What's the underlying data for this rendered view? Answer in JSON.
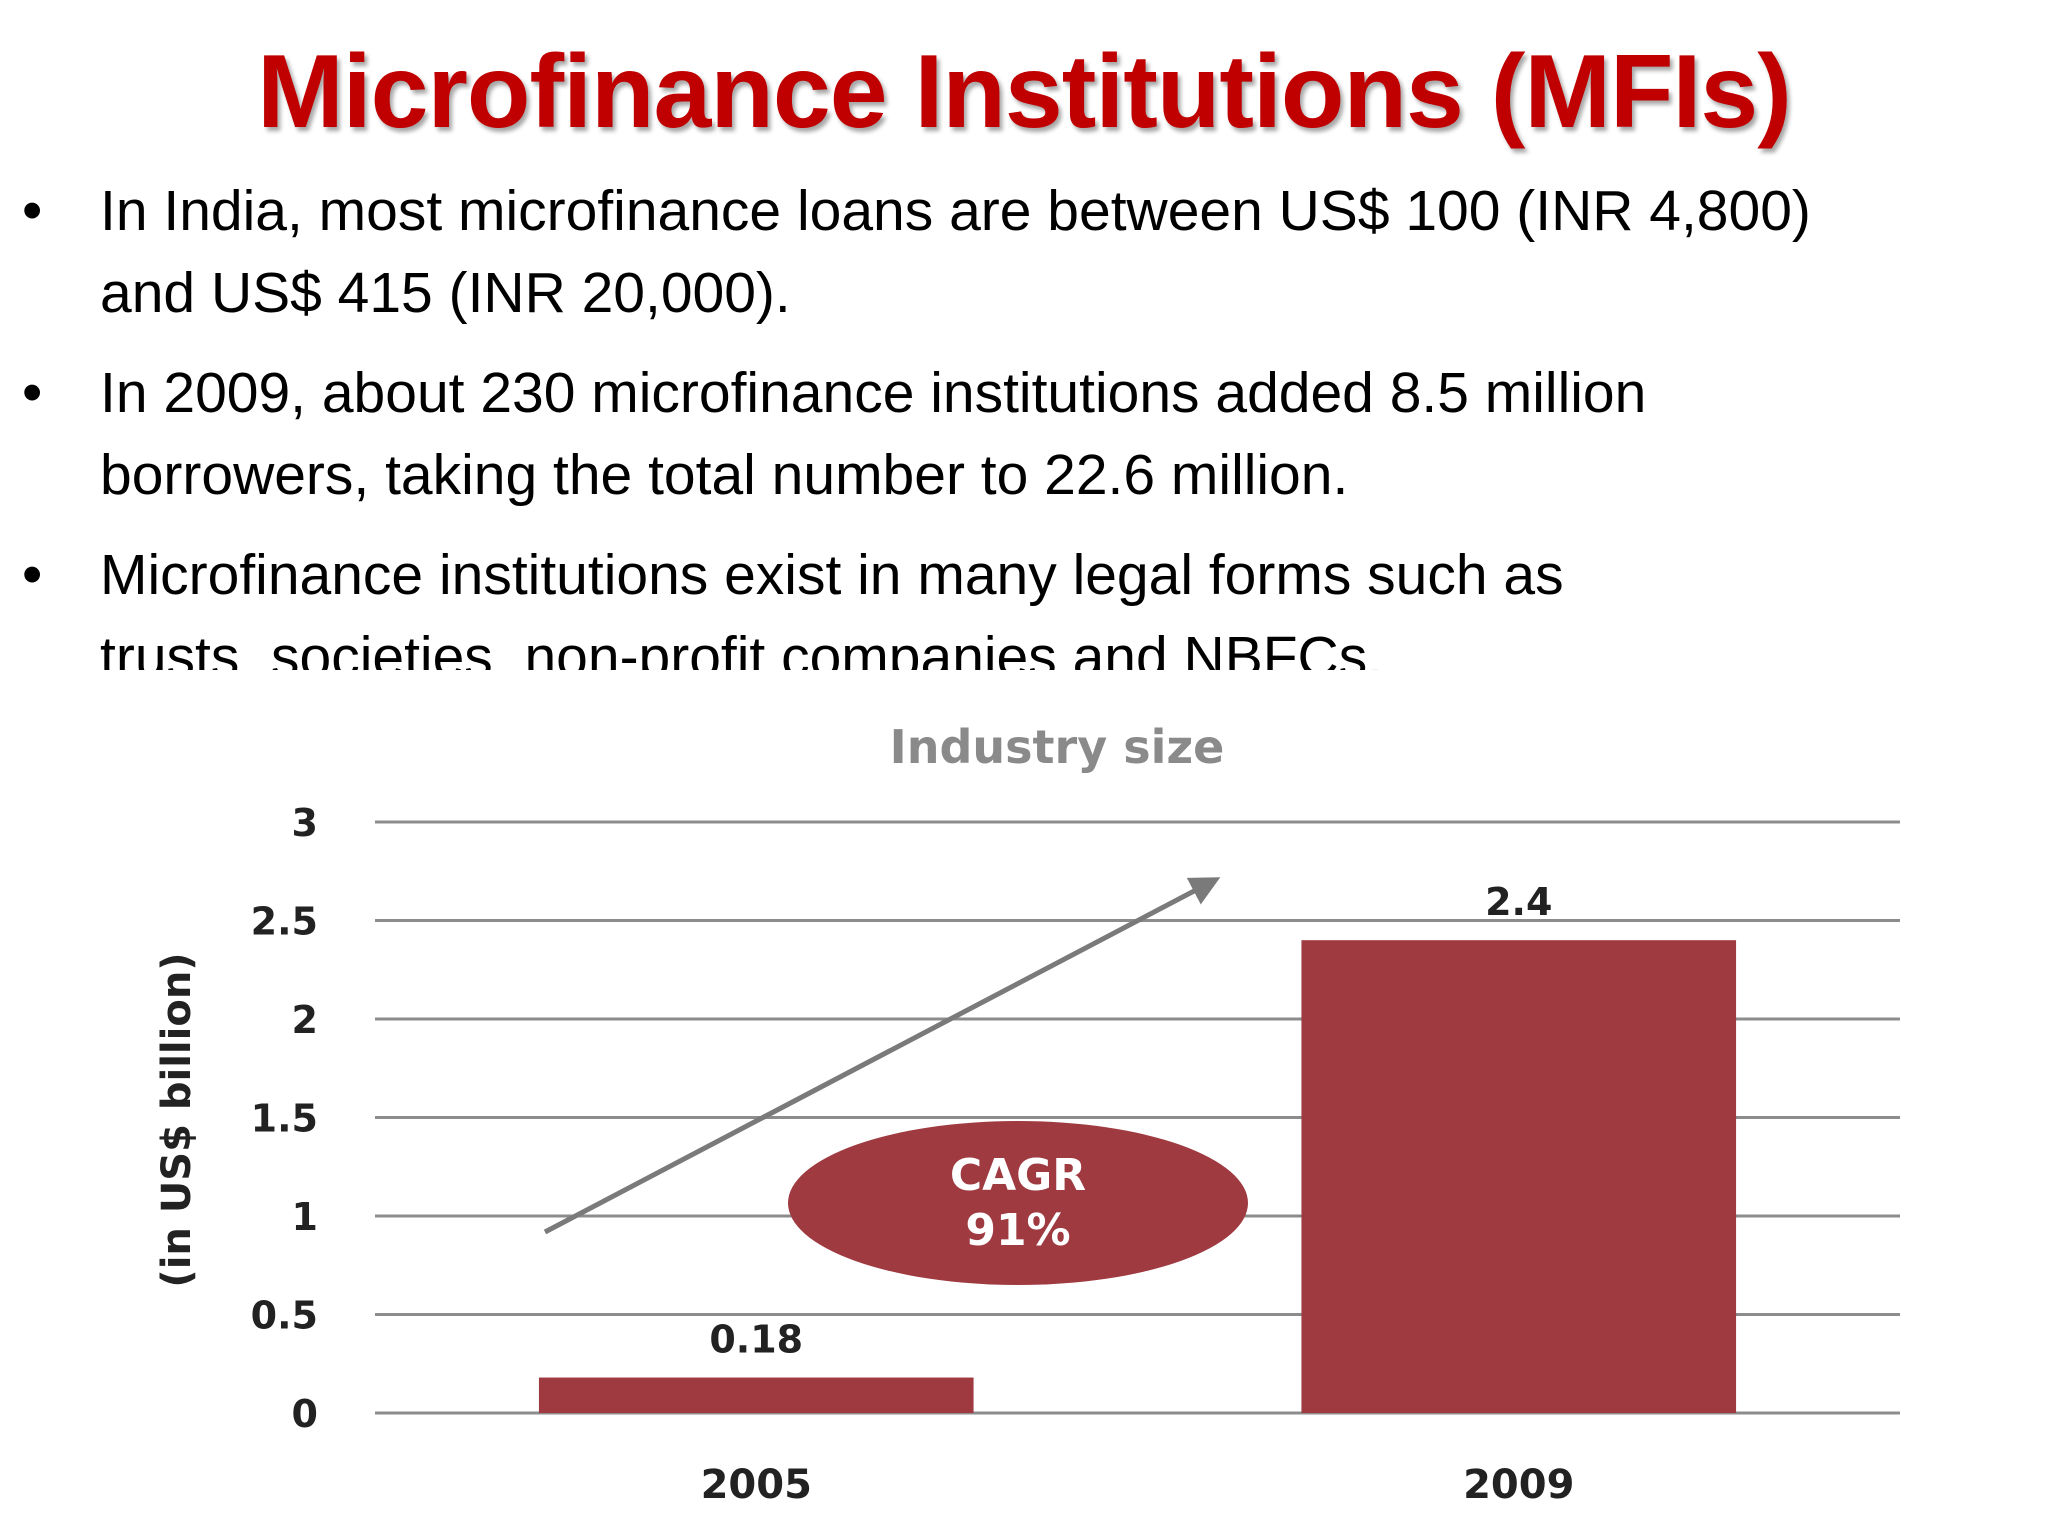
{
  "slide": {
    "title": "Microfinance Institutions (MFIs)",
    "bullet_glyph": "•",
    "bullets": [
      {
        "line1": "In India, most microfinance loans are between US$ 100 (INR 4,800)",
        "line2": "and US$ 415 (INR 20,000)."
      },
      {
        "line1": "In 2009, about 230 microfinance institutions added 8.5 million",
        "line2": "borrowers, taking the total number to 22.6 million."
      },
      {
        "line1": "Microfinance institutions exist in many legal forms such as",
        "line2": "trusts, societies, non-profit companies and NBFCs."
      }
    ]
  },
  "colors": {
    "title": "#c00000",
    "bar": "#9e3a40",
    "grid": "#8c8c8c",
    "arrow": "#7a7a7a",
    "chart_title": "#8a8a8a"
  },
  "chart_data": {
    "type": "bar",
    "title": "Industry size",
    "xlabel": "",
    "ylabel": "(in US$ billion)",
    "categories": [
      "2005",
      "2009"
    ],
    "values": [
      0.18,
      2.4
    ],
    "value_labels": [
      "0.18",
      "2.4"
    ],
    "ylim": [
      0,
      3
    ],
    "yticks": [
      0,
      0.5,
      1,
      1.5,
      2,
      2.5,
      3
    ],
    "ytick_labels": [
      "0",
      "0.5",
      "1",
      "1.5",
      "2",
      "2.5",
      "3"
    ],
    "grid": true,
    "annotation": {
      "line1": "CAGR",
      "line2": "91%"
    },
    "trend_arrow": true
  }
}
